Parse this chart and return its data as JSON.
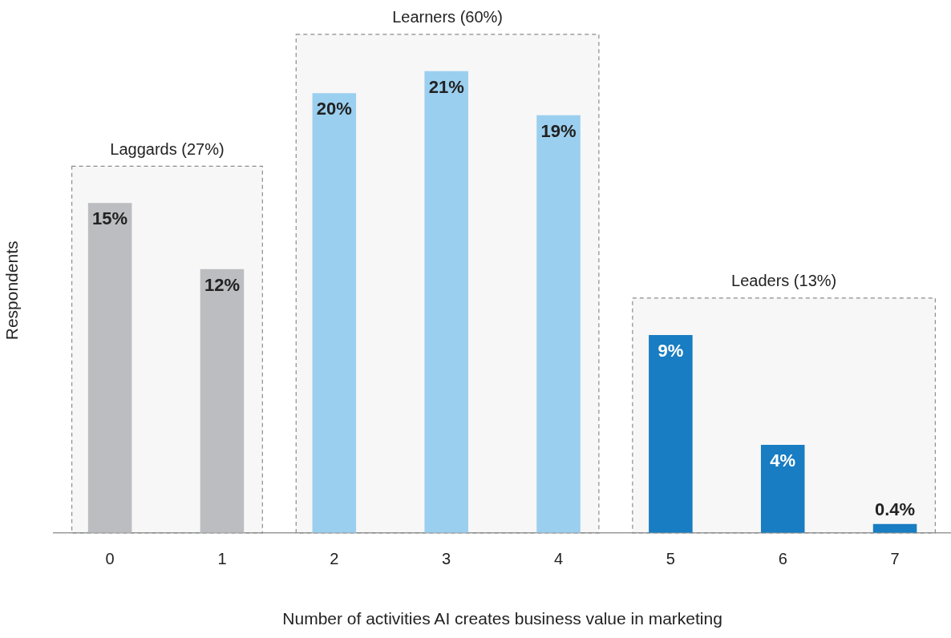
{
  "chart_data": {
    "type": "bar",
    "xlabel": "Number of activities AI creates business value in marketing",
    "ylabel": "Respondents",
    "categories": [
      "0",
      "1",
      "2",
      "3",
      "4",
      "5",
      "6",
      "7"
    ],
    "values": [
      15,
      12,
      20,
      21,
      19,
      9,
      4,
      0.4
    ],
    "colors": [
      "#bcbdc0",
      "#bcbdc0",
      "#9bcfef",
      "#9bcfef",
      "#9bcfef",
      "#187dc2",
      "#187dc2",
      "#187dc2"
    ],
    "value_labels": [
      "15%",
      "12%",
      "20%",
      "21%",
      "19%",
      "9%",
      "4%",
      "0.4%"
    ],
    "tick_labels": "x",
    "grid": false,
    "legend": false,
    "bands": [
      {
        "axis": "x",
        "from": "0",
        "to": "1",
        "label": "Laggards (27%)",
        "color": "#8c8c8c"
      },
      {
        "axis": "x",
        "from": "2",
        "to": "4",
        "label": "Learners (60%)",
        "color": "#8c8c8c"
      },
      {
        "axis": "x",
        "from": "5",
        "to": "7",
        "label": "Leaders (13%)",
        "color": "#8c8c8c"
      }
    ]
  }
}
